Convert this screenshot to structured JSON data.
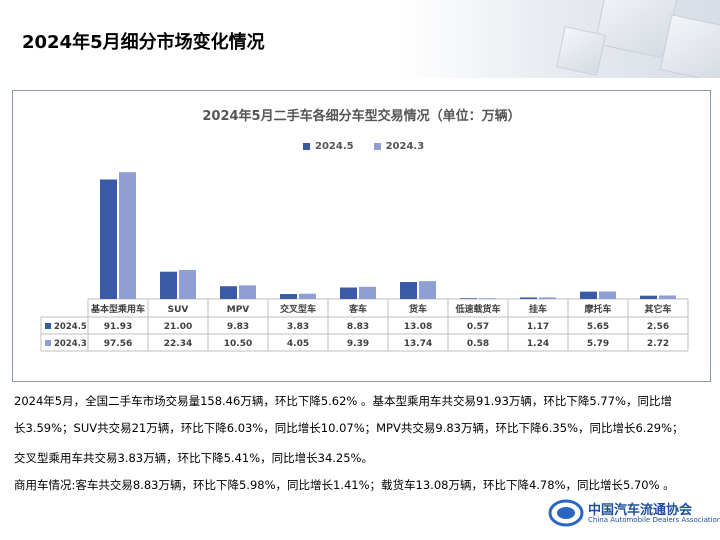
{
  "page": {
    "title": "2024年5月细分市场变化情况"
  },
  "colors": {
    "series_a": "#3a5aa8",
    "series_b": "#8f9fd4"
  },
  "chart_data": {
    "type": "bar",
    "title": "2024年5月二手车各细分车型交易情况（单位：万辆）",
    "categories": [
      "基本型乘用车",
      "SUV",
      "MPV",
      "交叉型车",
      "客车",
      "货车",
      "低速载货车",
      "挂车",
      "摩托车",
      "其它车"
    ],
    "series": [
      {
        "name": "2024.5",
        "values": [
          91.93,
          21.0,
          9.83,
          3.83,
          8.83,
          13.08,
          0.57,
          1.17,
          5.65,
          2.56
        ]
      },
      {
        "name": "2024.3",
        "values": [
          97.56,
          22.34,
          10.5,
          4.05,
          9.39,
          13.74,
          0.58,
          1.24,
          5.79,
          2.72
        ]
      }
    ],
    "table_values": [
      [
        "91.93",
        "21.00",
        "9.83",
        "3.83",
        "8.83",
        "13.08",
        "0.57",
        "1.17",
        "5.65",
        "2.56"
      ],
      [
        "97.56",
        "22.34",
        "10.50",
        "4.05",
        "9.39",
        "13.74",
        "0.58",
        "1.24",
        "5.79",
        "2.72"
      ]
    ],
    "legend_position": "top",
    "grid": false,
    "data_table": true
  },
  "description": {
    "lines": [
      "2024年5月，全国二手车市场交易量158.46万辆，环比下降5.62% 。基本型乘用车共交易91.93万辆，环比下降5.77%，同比增",
      "长3.59%；SUV共交易21万辆，环比下降6.03%，同比增长10.07%；MPV共交易9.83万辆，环比下降6.35%，同比增长6.29%；",
      "交叉型乘用车共交易3.83万辆，环比下降5.41%，同比增长34.25%。",
      "商用车情况:客车共交易8.83万辆，环比下降5.98%，同比增长1.41%；载货车13.08万辆，环比下降4.78%，同比增长5.70% 。"
    ]
  },
  "logo": {
    "name": "中国汽车流通协会",
    "subtitle": "China Automobile Dealers Association"
  }
}
